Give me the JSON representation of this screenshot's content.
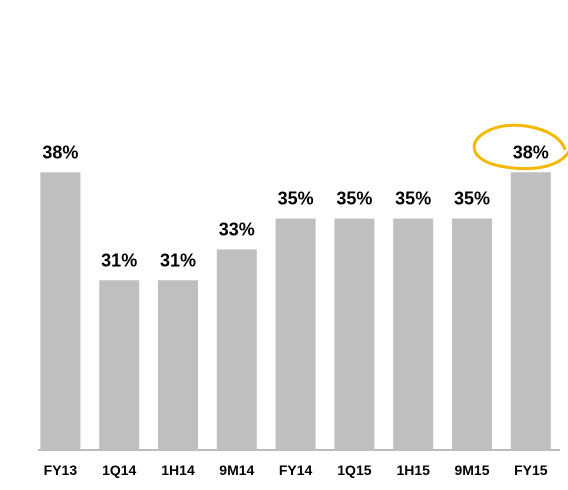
{
  "chart_data": {
    "type": "bar",
    "categories": [
      "FY13",
      "1Q14",
      "1H14",
      "9M14",
      "FY14",
      "1Q15",
      "1H15",
      "9M15",
      "FY15"
    ],
    "values": [
      38,
      31,
      31,
      33,
      35,
      35,
      35,
      35,
      38
    ],
    "value_labels": [
      "38%",
      "31%",
      "31%",
      "33%",
      "35%",
      "35%",
      "35%",
      "35%",
      "38%"
    ],
    "color": "#bfbfbf",
    "ylim": [
      20,
      40
    ]
  }
}
